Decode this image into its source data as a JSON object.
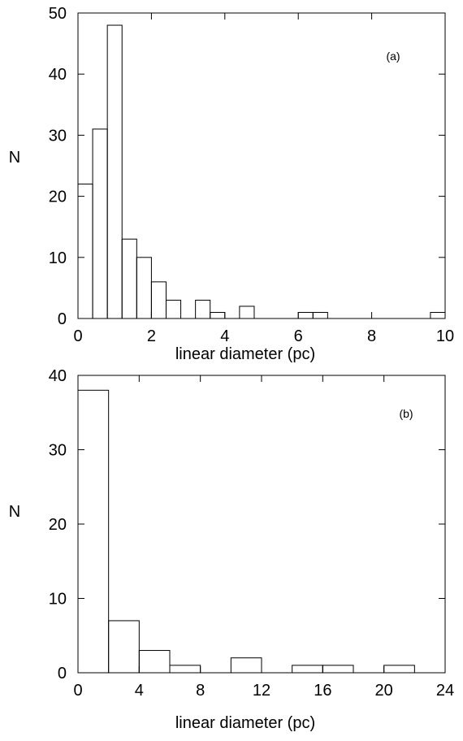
{
  "chart_data": [
    {
      "type": "bar",
      "panel_label": "(a)",
      "xlabel": "linear diameter (pc)",
      "ylabel": "N",
      "xlim": [
        0,
        10
      ],
      "ylim": [
        0,
        50
      ],
      "xticks": [
        0,
        2,
        4,
        6,
        8,
        10
      ],
      "yticks": [
        0,
        10,
        20,
        30,
        40,
        50
      ],
      "bin_width": 0.4,
      "bin_starts": [
        0,
        0.4,
        0.8,
        1.2,
        1.6,
        2.0,
        2.4,
        2.8,
        3.2,
        3.6,
        4.0,
        4.4,
        4.8,
        5.2,
        5.6,
        6.0,
        6.4,
        6.8,
        7.2,
        7.6,
        8.0,
        8.4,
        8.8,
        9.2,
        9.6
      ],
      "values": [
        22,
        31,
        48,
        13,
        10,
        6,
        3,
        0,
        3,
        1,
        0,
        2,
        0,
        0,
        0,
        1,
        1,
        0,
        0,
        0,
        0,
        0,
        0,
        0,
        1
      ],
      "grid": false
    },
    {
      "type": "bar",
      "panel_label": "(b)",
      "xlabel": "linear diameter (pc)",
      "ylabel": "N",
      "xlim": [
        0,
        24
      ],
      "ylim": [
        0,
        40
      ],
      "xticks": [
        0,
        4,
        8,
        12,
        16,
        20,
        24
      ],
      "yticks": [
        0,
        10,
        20,
        30,
        40
      ],
      "bin_width": 2,
      "bin_starts": [
        0,
        2,
        4,
        6,
        8,
        10,
        12,
        14,
        16,
        18,
        20,
        22
      ],
      "values": [
        38,
        7,
        3,
        1,
        0,
        2,
        0,
        1,
        1,
        0,
        1,
        0
      ],
      "grid": false
    }
  ]
}
